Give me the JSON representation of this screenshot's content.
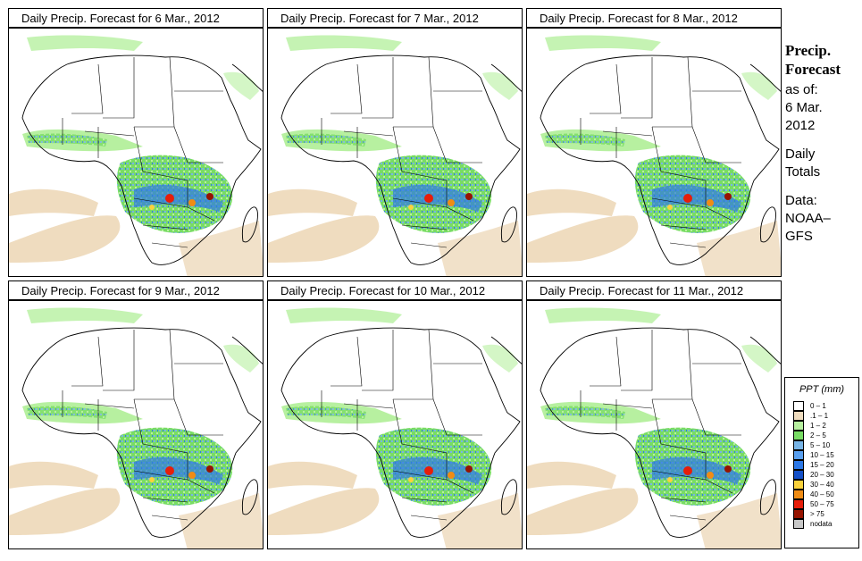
{
  "panels": [
    {
      "title": "Daily Precip. Forecast for  6 Mar., 2012"
    },
    {
      "title": "Daily Precip. Forecast for  7 Mar., 2012"
    },
    {
      "title": "Daily Precip. Forecast for  8 Mar., 2012"
    },
    {
      "title": "Daily Precip. Forecast for  9 Mar., 2012"
    },
    {
      "title": "Daily Precip. Forecast for  10 Mar., 2012"
    },
    {
      "title": "Daily Precip. Forecast for  11 Mar., 2012"
    }
  ],
  "sidebar": {
    "heading1": "Precip.",
    "heading2": "Forecast",
    "asof": "as of:",
    "date1": "6 Mar.",
    "date2": "2012",
    "daily1": "Daily",
    "daily2": "Totals",
    "data1": "Data:",
    "data2": "NOAA–",
    "data3": "GFS"
  },
  "legend": {
    "title": "PPT (mm)",
    "items": [
      {
        "label": "0 – 1",
        "color": "#ffffff"
      },
      {
        "label": ".1 – 1",
        "color": "#efdcbf"
      },
      {
        "label": "1 – 2",
        "color": "#b7f0a0"
      },
      {
        "label": "2 – 5",
        "color": "#78dc64"
      },
      {
        "label": "5 – 10",
        "color": "#78b4e6"
      },
      {
        "label": "10 – 15",
        "color": "#5aa0f0"
      },
      {
        "label": "15 – 20",
        "color": "#2d78e6"
      },
      {
        "label": "20 – 30",
        "color": "#1450c8"
      },
      {
        "label": "30 – 40",
        "color": "#fad23c"
      },
      {
        "label": "40 – 50",
        "color": "#f08c14"
      },
      {
        "label": "50 – 75",
        "color": "#e61e0a"
      },
      {
        "label": "> 75",
        "color": "#961400"
      },
      {
        "label": "nodata",
        "color": "#c8c8c8"
      }
    ]
  }
}
